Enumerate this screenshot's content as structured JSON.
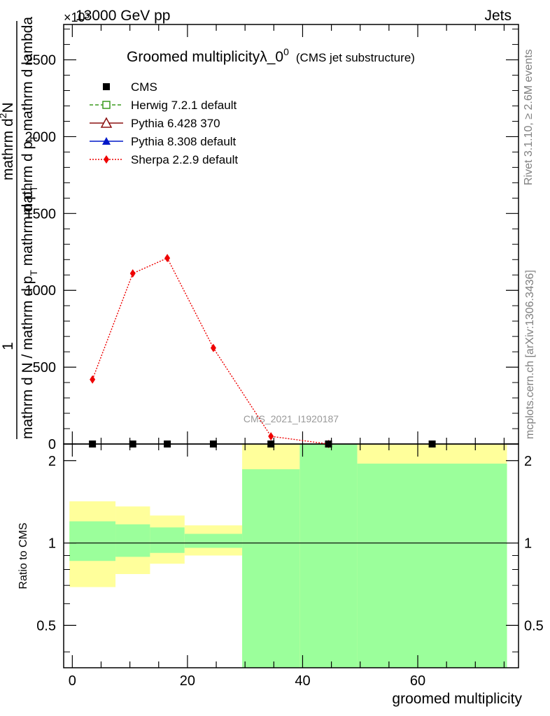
{
  "header": {
    "left": "13000 GeV pp",
    "right": "Jets",
    "exponent": "×10³"
  },
  "side_labels": {
    "rivet": "Rivet 3.1.10, ≥ 2.6M events",
    "mcplots": "mcplots.cern.ch [arXiv:1306.3436]"
  },
  "chart_data": [
    {
      "type": "line",
      "title": "Groomed multiplicityλ_0",
      "title_sup": "0",
      "subtitle": "(CMS jet substructure)",
      "watermark": "CMS_2021_I1920187",
      "ylabel": {
        "numerator": "1",
        "denominator": "mathrm d N / mathrm d p",
        "denominator_sub": "T",
        "denominator_tail": " mathrm d p",
        "denominator_tail_sub": "T",
        "right": "mathrm d",
        "right_sup": "2",
        "right_tail": "N",
        "right2": "mathrm d p",
        "right2_sub": "T",
        "right2_tail": " mathrm d lambda"
      },
      "ylim": [
        0,
        2730
      ],
      "xlim": [
        -1.5,
        77.5
      ],
      "yticks": [
        0,
        500,
        1000,
        1500,
        2000,
        2500
      ],
      "ytick_labels": [
        "0",
        "500",
        "1000",
        "1500",
        "2000",
        "2500"
      ],
      "legend_position": "top-left",
      "legend": [
        {
          "name": "CMS",
          "marker": "square-filled",
          "color": "#000000",
          "line": "none"
        },
        {
          "name": "Herwig 7.2.1 default",
          "marker": "square-open",
          "color": "#3a9a1e",
          "line": "dashed"
        },
        {
          "name": "Pythia 6.428 370",
          "marker": "triangle-open",
          "color": "#8b1010",
          "line": "solid"
        },
        {
          "name": "Pythia 8.308 default",
          "marker": "triangle-filled",
          "color": "#0018c8",
          "line": "solid"
        },
        {
          "name": "Sherpa 2.2.9 default",
          "marker": "diamond-filled",
          "color": "#ee0000",
          "line": "dotted"
        }
      ],
      "series": [
        {
          "name": "CMS",
          "x": [
            3.5,
            10.5,
            16.5,
            24.5,
            34.5,
            44.5,
            62.5
          ],
          "y": [
            0,
            0,
            0,
            0,
            0,
            0,
            0
          ],
          "color": "#000000"
        },
        {
          "name": "Sherpa 2.2.9 default",
          "x": [
            3.5,
            10.5,
            16.5,
            24.5,
            34.5,
            44.5
          ],
          "y": [
            420,
            1110,
            1210,
            625,
            50,
            0
          ],
          "color": "#ee0000"
        }
      ]
    },
    {
      "type": "area",
      "ylabel": "Ratio to CMS",
      "xlabel": "groomed multiplicity",
      "xlim": [
        -1.5,
        77.5
      ],
      "ylim": [
        0.35,
        2.3
      ],
      "log_y": true,
      "xticks": [
        0,
        20,
        40,
        60
      ],
      "xtick_labels": [
        "0",
        "20",
        "40",
        "60"
      ],
      "yticks": [
        0.5,
        1,
        2
      ],
      "ytick_labels": [
        "0.5",
        "1",
        "2"
      ],
      "reference_line": 1,
      "band_colors": {
        "inner": "#9bff9b",
        "outer": "#ffff9b"
      },
      "bands": [
        {
          "x0": -0.5,
          "x1": 7.5,
          "inner": [
            0.86,
            1.2
          ],
          "outer": [
            0.69,
            1.42
          ]
        },
        {
          "x0": 7.5,
          "x1": 13.5,
          "inner": [
            0.89,
            1.17
          ],
          "outer": [
            0.77,
            1.36
          ]
        },
        {
          "x0": 13.5,
          "x1": 19.5,
          "inner": [
            0.92,
            1.14
          ],
          "outer": [
            0.84,
            1.26
          ]
        },
        {
          "x0": 19.5,
          "x1": 29.5,
          "inner": [
            0.96,
            1.08
          ],
          "outer": [
            0.9,
            1.16
          ]
        },
        {
          "x0": 29.5,
          "x1": 39.5,
          "inner": [
            0.35,
            1.86
          ],
          "outer": [
            0.35,
            2.3
          ]
        },
        {
          "x0": 39.5,
          "x1": 49.5,
          "inner": [
            0.35,
            2.3
          ],
          "outer": [
            0.35,
            2.3
          ]
        },
        {
          "x0": 49.5,
          "x1": 75.5,
          "inner": [
            0.35,
            1.95
          ],
          "outer": [
            0.35,
            2.3
          ]
        }
      ]
    }
  ]
}
